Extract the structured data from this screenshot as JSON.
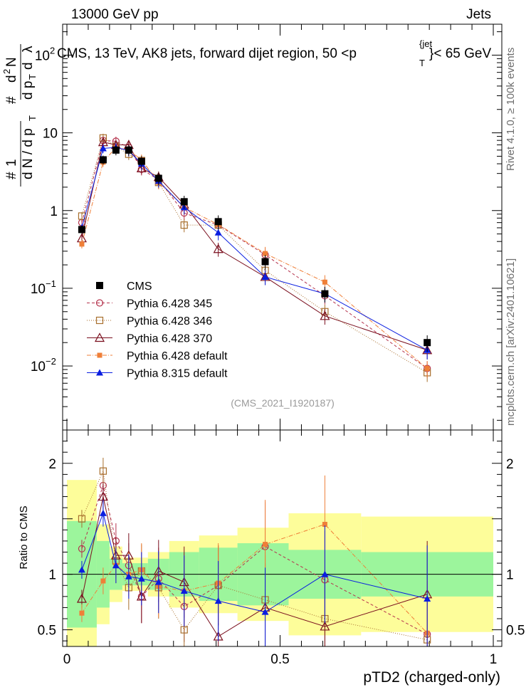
{
  "header": {
    "left": "13000 GeV pp",
    "right": "Jets",
    "title_main": "CMS, 13 TeV, AK8 jets, forward dijet region, 50 <p",
    "title_sup": "{jet",
    "title_sub": "T",
    "title_end": "}< 65 GeV",
    "side_top": "Rivet 4.1.0, ≥ 100k events",
    "side_bottom": "mcplots.cern.ch [arXiv:2401.10621]",
    "watermark": "(CMS_2021_I1920187)"
  },
  "chart_data": [
    {
      "type": "scatter",
      "scale": "log",
      "ylabel": "1/(dN/dpT) d²N/(dpT dλ)",
      "ylim": [
        0.0015,
        250
      ],
      "y_ticks": [
        {
          "v": 0.01,
          "mant": "10",
          "exp": "−2"
        },
        {
          "v": 0.1,
          "mant": "10",
          "exp": "−1"
        },
        {
          "v": 1,
          "mant": "1",
          "exp": ""
        },
        {
          "v": 10,
          "mant": "10",
          "exp": ""
        },
        {
          "v": 100,
          "mant": "10",
          "exp": "2"
        }
      ],
      "x": [
        0.035,
        0.085,
        0.115,
        0.145,
        0.175,
        0.215,
        0.275,
        0.355,
        0.465,
        0.605,
        0.845
      ],
      "series": [
        {
          "name": "CMS",
          "values": [
            0.57,
            4.5,
            6.0,
            6.0,
            4.3,
            2.6,
            1.3,
            0.72,
            0.22,
            0.085,
            0.02
          ]
        },
        {
          "name": "Pythia 6.428 345",
          "values": [
            0.7,
            8.0,
            7.8,
            6.5,
            3.4,
            2.5,
            0.93,
            0.65,
            0.27,
            0.08,
            0.0093
          ]
        },
        {
          "name": "Pythia 6.428 346",
          "values": [
            0.85,
            8.6,
            6.7,
            5.3,
            4.4,
            2.3,
            0.65,
            0.65,
            0.17,
            0.05,
            0.0082
          ]
        },
        {
          "name": "Pythia 6.428 370",
          "values": [
            0.44,
            7.6,
            7.0,
            7.0,
            3.5,
            2.7,
            1.2,
            0.32,
            0.14,
            0.044,
            0.016
          ]
        },
        {
          "name": "Pythia 6.428 default",
          "values": [
            0.37,
            4.2,
            6.5,
            6.0,
            4.5,
            2.3,
            1.1,
            0.66,
            0.28,
            0.12,
            0.0093
          ]
        },
        {
          "name": "Pythia 8.315 default",
          "values": [
            0.6,
            6.3,
            6.5,
            5.9,
            4.0,
            2.4,
            1.1,
            0.52,
            0.14,
            0.085,
            0.016
          ]
        }
      ]
    },
    {
      "type": "scatter",
      "ylabel": "Ratio to CMS",
      "ylim": [
        0.35,
        2.3
      ],
      "y_ticks": [
        0.5,
        1,
        1.5,
        2
      ],
      "y_tick_labels": [
        "0.5",
        "1",
        "",
        "2"
      ],
      "xlim": [
        -0.01,
        1.02
      ],
      "x_ticks": [
        0,
        0.5,
        1
      ],
      "x_tick_labels": [
        "0",
        "0.5",
        "1"
      ],
      "xlabel": "pTD2 (charged-only)",
      "bins": [
        0,
        0.07,
        0.1,
        0.13,
        0.16,
        0.19,
        0.24,
        0.31,
        0.4,
        0.52,
        0.69,
        1.0
      ],
      "band_stat": [
        0.48,
        0.3,
        0.14,
        0.1,
        0.1,
        0.14,
        0.2,
        0.24,
        0.28,
        0.22,
        0.2
      ],
      "band_total": [
        0.85,
        0.45,
        0.25,
        0.15,
        0.15,
        0.2,
        0.3,
        0.35,
        0.42,
        0.55,
        0.52
      ],
      "series": [
        {
          "name": "Pythia 6.428 345",
          "values": [
            1.23,
            1.8,
            1.3,
            1.08,
            0.8,
            0.96,
            0.71,
            0.9,
            1.25,
            0.95,
            0.46
          ]
        },
        {
          "name": "Pythia 6.428 346",
          "values": [
            1.5,
            1.93,
            1.12,
            0.88,
            1.03,
            0.88,
            0.5,
            0.9,
            0.77,
            0.6,
            0.41
          ]
        },
        {
          "name": "Pythia 6.428 370",
          "values": [
            0.78,
            1.7,
            1.17,
            1.17,
            0.8,
            1.03,
            0.93,
            0.44,
            0.7,
            0.53,
            0.82
          ]
        },
        {
          "name": "Pythia 6.428 default",
          "values": [
            0.65,
            0.94,
            1.08,
            1.0,
            1.04,
            0.89,
            0.85,
            0.92,
            1.27,
            1.45,
            0.47
          ]
        },
        {
          "name": "Pythia 8.315 default",
          "values": [
            1.04,
            1.55,
            1.08,
            0.98,
            0.96,
            0.93,
            0.85,
            0.76,
            0.66,
            1.0,
            0.78
          ]
        }
      ]
    }
  ],
  "styles": [
    {
      "color": "#000000",
      "marker": "square-filled",
      "dash": "",
      "label_key": "CMS"
    },
    {
      "color": "#b5334d",
      "marker": "circle-open",
      "dash": "4,3",
      "label_key": "345"
    },
    {
      "color": "#a86f2d",
      "marker": "square-open",
      "dash": "1,2",
      "label_key": "346"
    },
    {
      "color": "#7a0f1e",
      "marker": "triangle-open",
      "dash": "",
      "label_key": "370"
    },
    {
      "color": "#ef7f38",
      "marker": "square-filled-small",
      "dash": "6,2,1,2",
      "label_key": "default6"
    },
    {
      "color": "#0a1ee0",
      "marker": "triangle-filled",
      "dash": "",
      "label_key": "p8"
    }
  ],
  "band_colors": {
    "stat": "#9cf59c",
    "total": "#fdfd9a"
  }
}
